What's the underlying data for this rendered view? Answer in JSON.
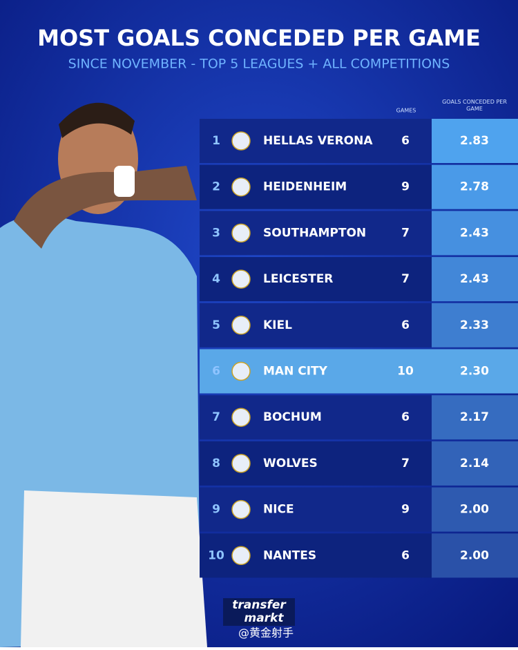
{
  "header": {
    "title": "MOST GOALS CONCEDED PER GAME",
    "subtitle": "SINCE NOVEMBER - TOP 5 LEAGUES + ALL COMPETITIONS"
  },
  "table": {
    "columns": [
      "GAMES",
      "GOALS CONCEDED PER GAME"
    ],
    "rows": [
      [
        "1",
        "HELLAS VERONA",
        "6",
        "2.83"
      ],
      [
        "2",
        "HEIDENHEIM",
        "9",
        "2.78"
      ],
      [
        "3",
        "SOUTHAMPTON",
        "7",
        "2.43"
      ],
      [
        "4",
        "LEICESTER",
        "7",
        "2.43"
      ],
      [
        "5",
        "KIEL",
        "6",
        "2.33"
      ],
      [
        "6",
        "MAN CITY",
        "10",
        "2.30"
      ],
      [
        "7",
        "BOCHUM",
        "6",
        "2.17"
      ],
      [
        "8",
        "WOLVES",
        "7",
        "2.14"
      ],
      [
        "9",
        "NICE",
        "9",
        "2.00"
      ],
      [
        "10",
        "NANTES",
        "6",
        "2.00"
      ]
    ]
  },
  "footer": {
    "logo_top": "transfer",
    "logo_bottom": "markt",
    "watermark": "@黄金射手"
  }
}
